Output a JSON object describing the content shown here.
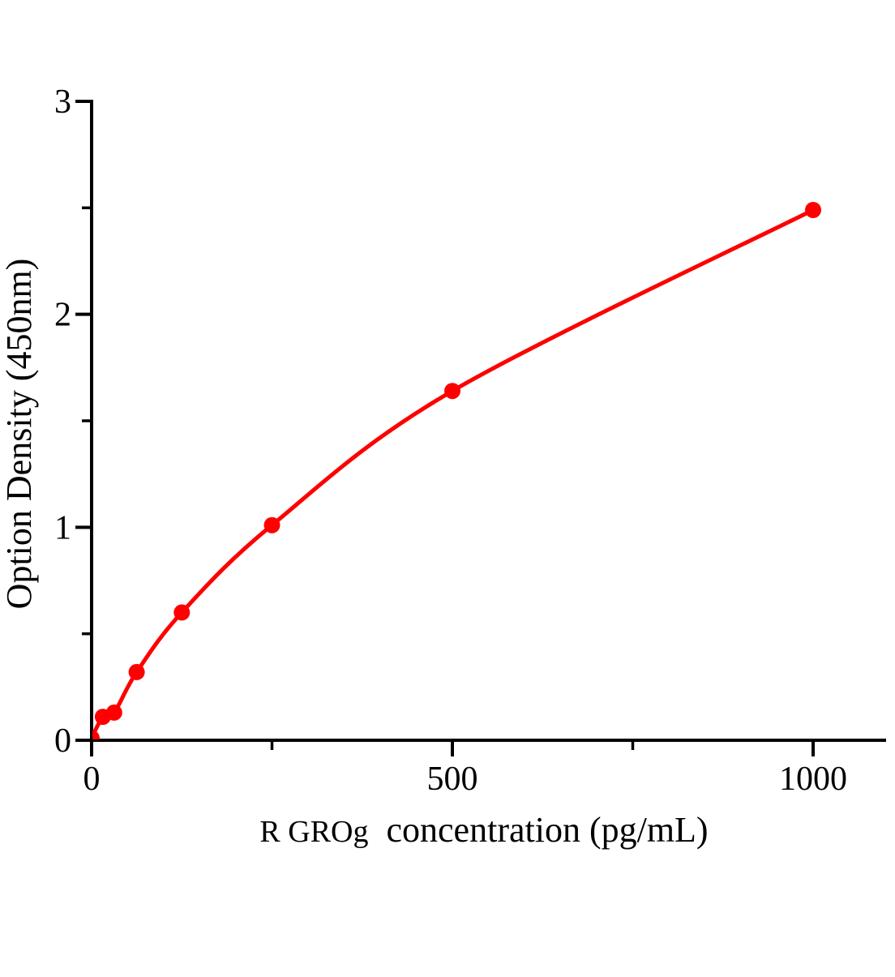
{
  "figure": {
    "background": "#ffffff"
  },
  "chart_data": {
    "type": "line",
    "subtype": "scatter-with-fitted-curve",
    "title": "",
    "xlabel_prefix": "R GROg",
    "xlabel_main": "concentration（pg/mL）",
    "xlabel_full": "R GROg concentration（pg/mL）",
    "ylabel": "Option Density（450nm）",
    "x": [
      0,
      15.6,
      31.25,
      62.5,
      125,
      250,
      500,
      1000
    ],
    "y": [
      0.01,
      0.11,
      0.13,
      0.32,
      0.6,
      1.01,
      1.64,
      2.49
    ],
    "xlim": [
      0,
      1100
    ],
    "ylim": [
      0,
      3
    ],
    "x_major_ticks": [
      0,
      500,
      1000
    ],
    "x_tick_labels": [
      "0",
      "500",
      "1000"
    ],
    "x_minor_ticks": [
      250,
      750
    ],
    "y_major_ticks": [
      0,
      1,
      2,
      3
    ],
    "y_tick_labels": [
      "0",
      "1",
      "2",
      "3"
    ],
    "y_minor_ticks": [
      0.5,
      1.5,
      2.5
    ],
    "grid": false,
    "legend": "none",
    "line_color": "#ff0000",
    "marker": "circle",
    "marker_color": "#ff0000",
    "marker_radius": 10,
    "axis_color": "#000000",
    "background": "#ffffff"
  }
}
